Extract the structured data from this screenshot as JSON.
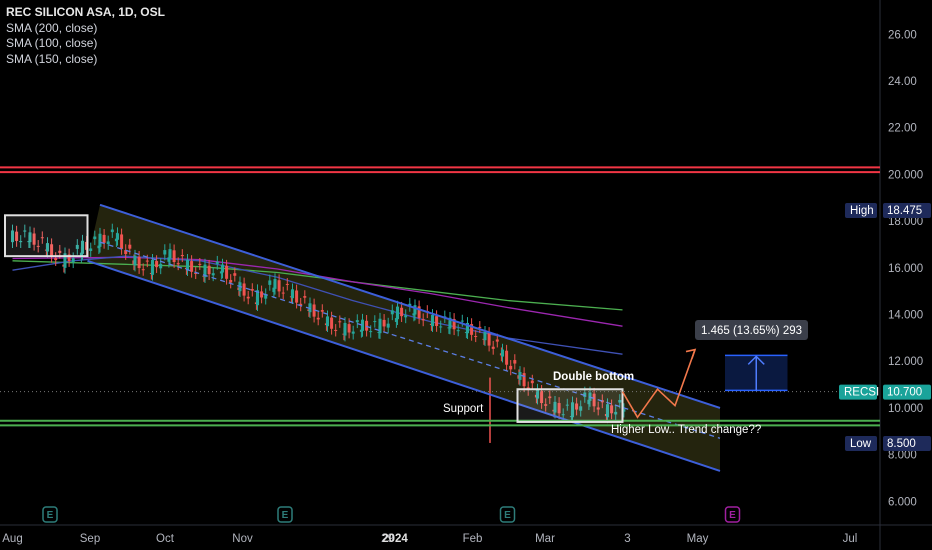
{
  "header": {
    "title": "REC SILICON ASA, 1D, OSL",
    "indicators": [
      "SMA (200, close)",
      "SMA (100, close)",
      "SMA (150, close)"
    ]
  },
  "chart_data": {
    "type": "candlestick",
    "y_ticks": [
      "26.00",
      "24.00",
      "22.00",
      "20.000",
      "18.000",
      "16.000",
      "14.000",
      "12.000",
      "10.000",
      "8.000",
      "6.000"
    ],
    "y_tick_values": [
      26,
      24,
      22,
      20,
      18,
      16,
      14,
      12,
      10,
      8,
      6
    ],
    "ylim": [
      5.2,
      26.4
    ],
    "x_ticks": [
      "Aug",
      "Sep",
      "Oct",
      "Nov",
      "29",
      "2024",
      "Feb",
      "Mar",
      "3",
      "May",
      "Jul"
    ],
    "x_tick_dates": [
      "2023-08-01",
      "2023-09-01",
      "2023-10-01",
      "2023-11-01",
      "2023-12-29",
      "2024-01-01",
      "2024-02-01",
      "2024-03-01",
      "2024-04-03",
      "2024-05-01",
      "2024-07-01"
    ],
    "price_tags": [
      {
        "label": "High",
        "value": "18.475",
        "price": 18.475,
        "color": "#1e2a5a"
      },
      {
        "label": "RECSI",
        "value": "10.700",
        "price": 10.7,
        "color": "#1aa39a"
      },
      {
        "label": "Low",
        "value": "8.500",
        "price": 8.5,
        "color": "#1e2a5a"
      }
    ],
    "resistance_lines": [
      20.3,
      20.1
    ],
    "support_lines": [
      9.45,
      9.25
    ],
    "channel": {
      "upper": [
        [
          "2023-09-05",
          18.7
        ],
        [
          "2024-05-10",
          10.0
        ]
      ],
      "lower": [
        [
          "2023-08-31",
          16.3
        ],
        [
          "2024-05-10",
          7.3
        ]
      ],
      "mid": [
        [
          "2023-09-05",
          17.1
        ],
        [
          "2024-05-10",
          8.7
        ]
      ]
    },
    "sma": [
      {
        "name": "SMA (200, close)",
        "color": "#4caf50",
        "points": [
          [
            "2023-08-01",
            16.3
          ],
          [
            "2023-09-15",
            16.15
          ],
          [
            "2023-10-15",
            16.05
          ],
          [
            "2023-11-15",
            15.8
          ],
          [
            "2023-12-15",
            15.4
          ],
          [
            "2024-01-15",
            15.0
          ],
          [
            "2024-02-15",
            14.6
          ],
          [
            "2024-04-01",
            14.2
          ]
        ]
      },
      {
        "name": "SMA (150, close)",
        "color": "#9c27b0",
        "points": [
          [
            "2023-08-01",
            16.4
          ],
          [
            "2023-09-15",
            16.45
          ],
          [
            "2023-10-15",
            16.35
          ],
          [
            "2023-11-15",
            15.95
          ],
          [
            "2023-12-15",
            15.4
          ],
          [
            "2024-01-15",
            14.9
          ],
          [
            "2024-02-15",
            14.3
          ],
          [
            "2024-04-01",
            13.5
          ]
        ]
      },
      {
        "name": "SMA (100, close)",
        "color": "#3f51b5",
        "points": [
          [
            "2023-08-01",
            15.9
          ],
          [
            "2023-08-25",
            16.3
          ],
          [
            "2023-09-15",
            16.5
          ],
          [
            "2023-10-15",
            16.3
          ],
          [
            "2023-11-15",
            15.6
          ],
          [
            "2023-12-15",
            14.6
          ],
          [
            "2024-01-15",
            13.7
          ],
          [
            "2024-02-15",
            13.0
          ],
          [
            "2024-04-01",
            12.3
          ]
        ]
      }
    ],
    "annotations": {
      "support": "Support",
      "double_bottom": "Double bottom",
      "higher_low": "Higher Low.. Trend change??",
      "measure": "1.465 (13.65%) 293"
    },
    "boxes": [
      {
        "from": "2023-07-29",
        "to": "2023-08-31",
        "top": 18.25,
        "bottom": 16.5
      },
      {
        "from": "2024-02-19",
        "to": "2024-04-01",
        "top": 10.8,
        "bottom": 9.4
      }
    ],
    "measure_box": {
      "from": "2024-05-12",
      "to": "2024-06-06",
      "top": 12.25,
      "bottom": 10.75
    },
    "projection": [
      [
        "2024-04-01",
        10.7
      ],
      [
        "2024-04-07",
        9.6
      ],
      [
        "2024-04-15",
        10.8
      ],
      [
        "2024-04-22",
        10.1
      ],
      [
        "2024-04-30",
        12.5
      ]
    ],
    "events": [
      {
        "date": "2023-08-16",
        "label": "E",
        "color": "#2e7d7a"
      },
      {
        "date": "2023-11-18",
        "label": "E",
        "color": "#2e7d7a"
      },
      {
        "date": "2024-02-15",
        "label": "E",
        "color": "#2e7d7a"
      },
      {
        "date": "2024-05-15",
        "label": "E",
        "color": "#a020a0"
      }
    ],
    "colors": {
      "up": "#26a69a",
      "down": "#ef5350",
      "channel_line": "#3d5fd9",
      "channel_fill": "#2a2a10"
    },
    "candles_approx": {
      "note_source": "visible candles, weekly sampled closes",
      "dates": [
        "2023-08-01",
        "2023-08-08",
        "2023-08-15",
        "2023-08-22",
        "2023-08-29",
        "2023-09-05",
        "2023-09-12",
        "2023-09-19",
        "2023-09-26",
        "2023-10-03",
        "2023-10-10",
        "2023-10-17",
        "2023-10-24",
        "2023-10-31",
        "2023-11-07",
        "2023-11-14",
        "2023-11-21",
        "2023-11-28",
        "2023-12-05",
        "2023-12-12",
        "2023-12-19",
        "2023-12-26",
        "2024-01-02",
        "2024-01-09",
        "2024-01-16",
        "2024-01-23",
        "2024-01-30",
        "2024-02-06",
        "2024-02-13",
        "2024-02-20",
        "2024-02-27",
        "2024-03-05",
        "2024-03-12",
        "2024-03-19",
        "2024-03-26"
      ],
      "close": [
        17.3,
        16.9,
        16.2,
        16.8,
        17.1,
        17.4,
        16.3,
        15.9,
        16.6,
        16.1,
        15.8,
        16.0,
        15.2,
        14.6,
        15.3,
        14.9,
        14.3,
        13.7,
        13.3,
        13.5,
        13.4,
        14.0,
        14.2,
        13.7,
        13.6,
        13.4,
        13.1,
        12.4,
        11.4,
        10.6,
        10.0,
        9.8,
        10.5,
        9.8,
        10.1
      ]
    }
  }
}
